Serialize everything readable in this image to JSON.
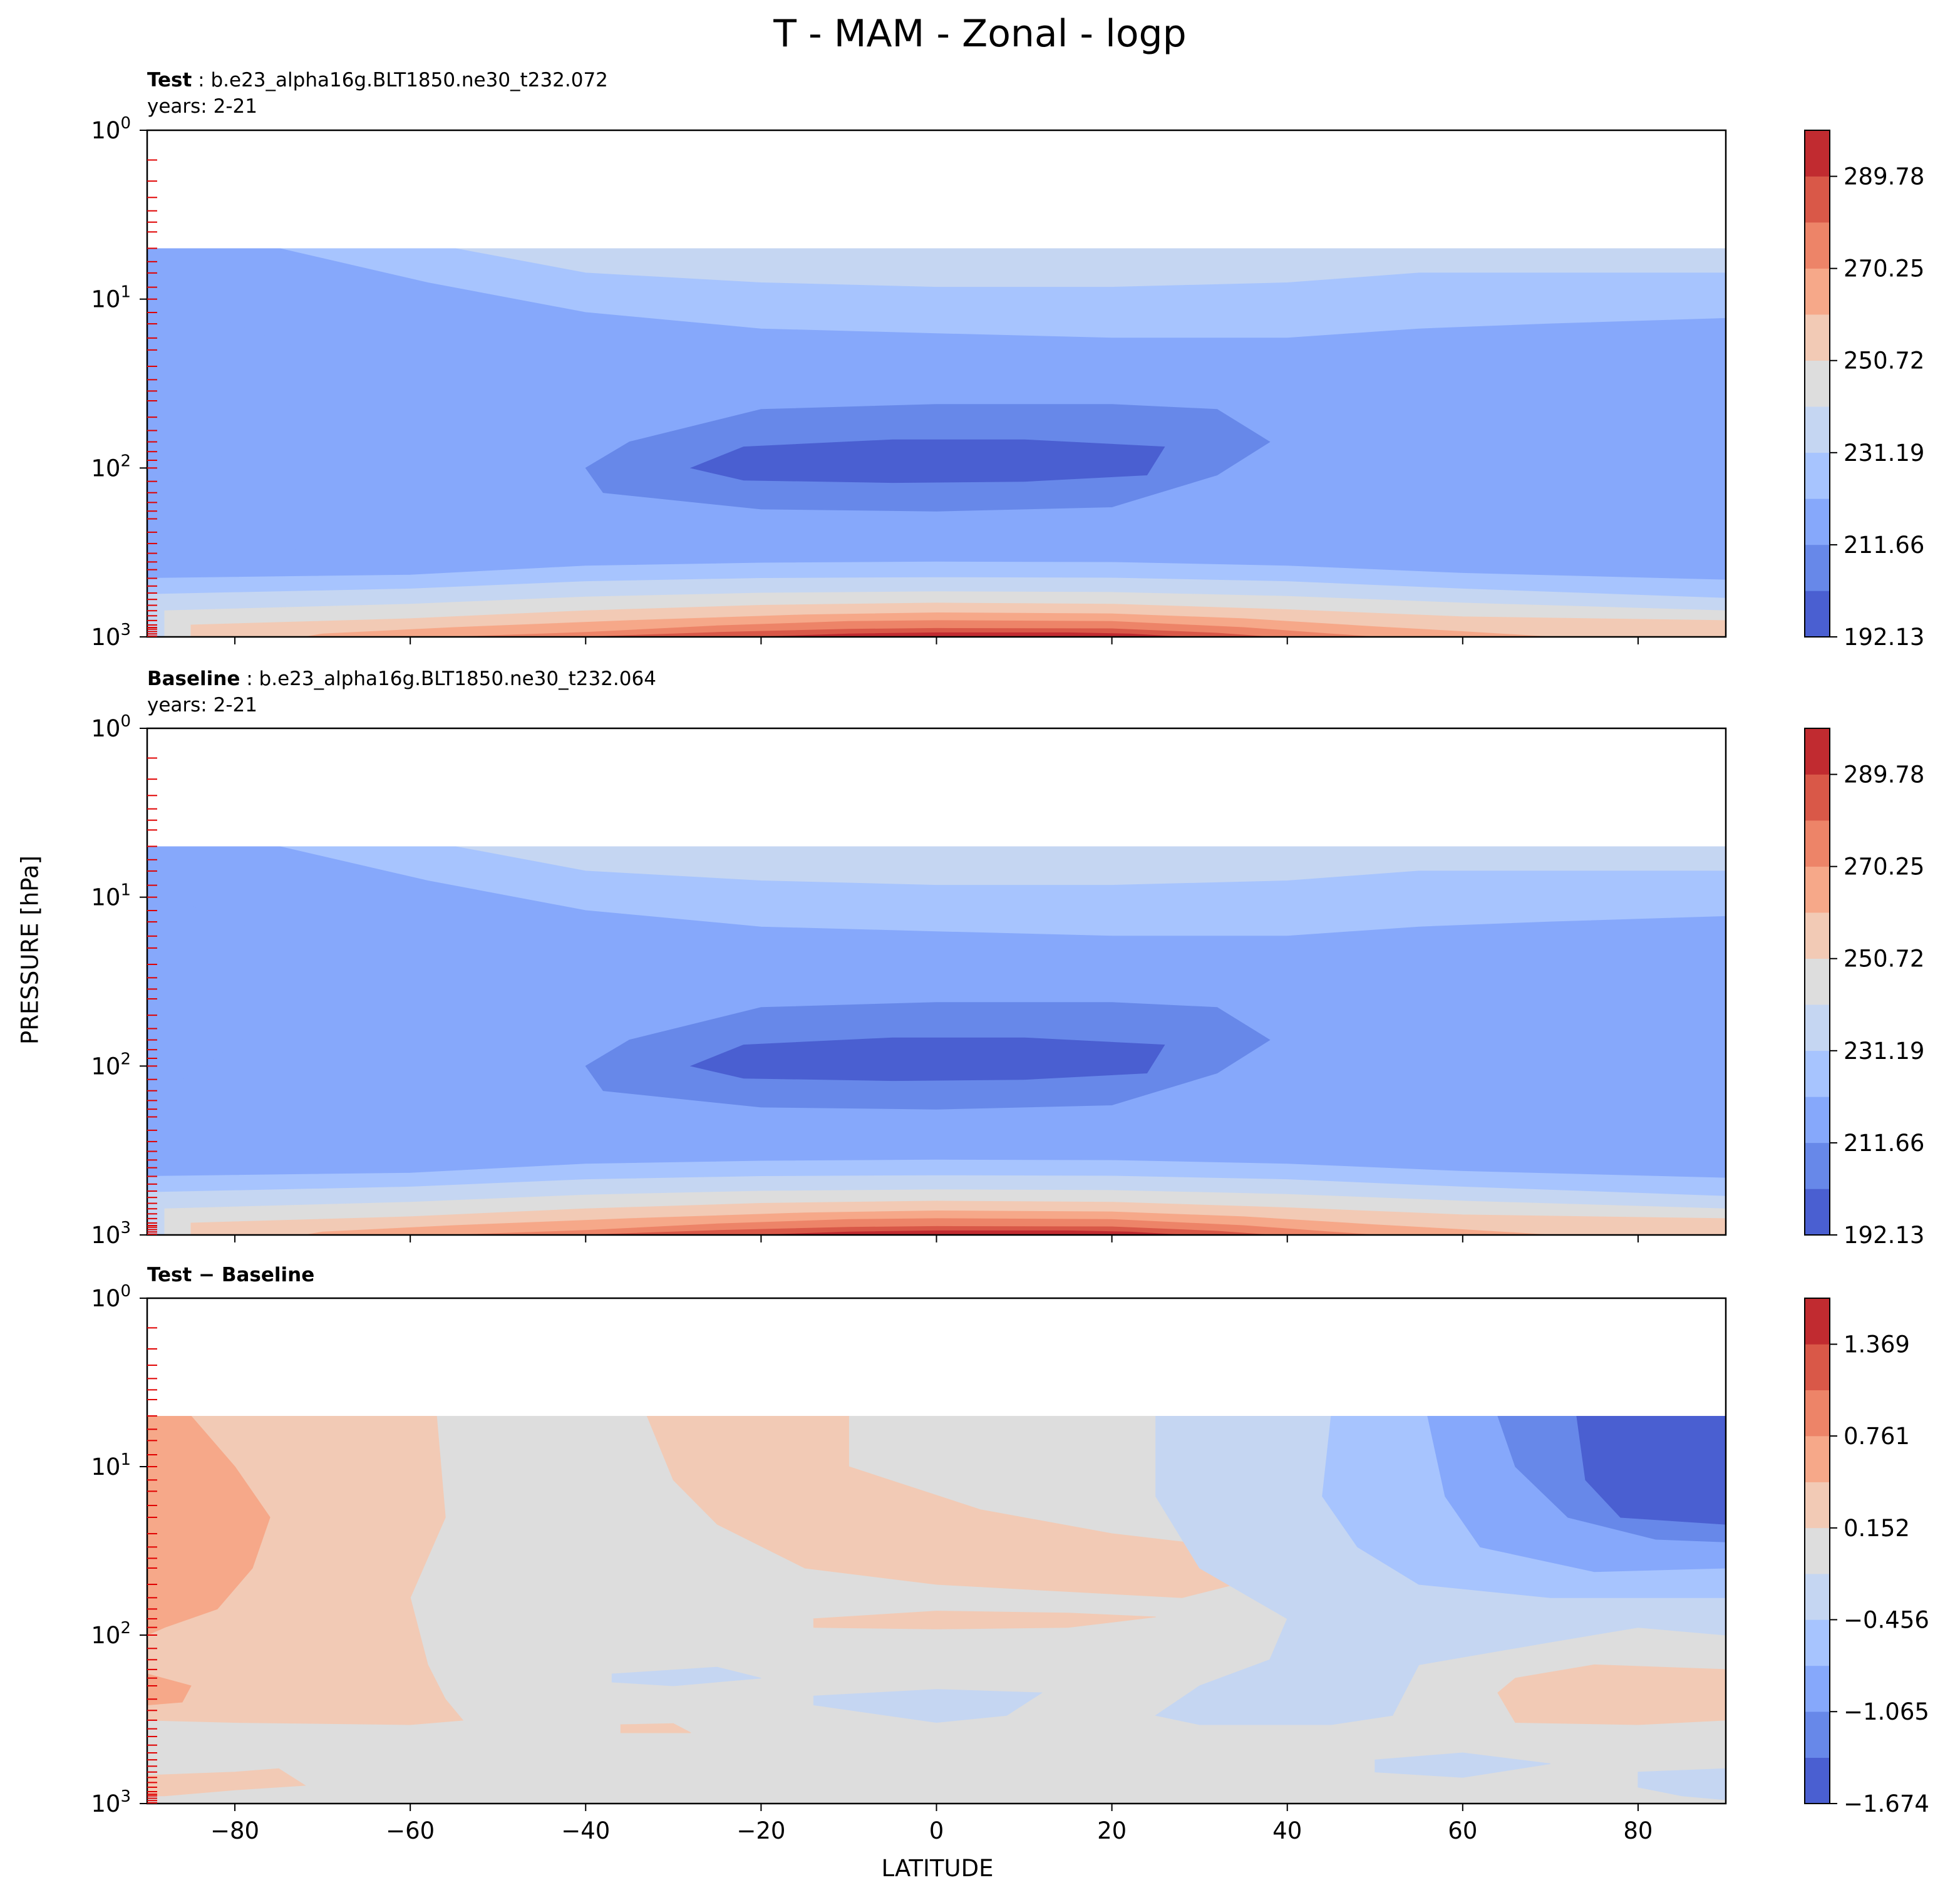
{
  "figure": {
    "suptitle": "T - MAM - Zonal - logp",
    "xlabel": "LATITUDE",
    "ylabel": "PRESSURE [hPa]"
  },
  "panels": [
    {
      "label": "Test",
      "case": "b.e23_alpha16g.BLT1850.ne30_t232.072",
      "years": "years: 2-21"
    },
    {
      "label": "Baseline",
      "case": "b.e23_alpha16g.BLT1850.ne30_t232.064",
      "years": "years: 2-21"
    },
    {
      "label": "Test − Baseline"
    }
  ],
  "chart_data": [
    {
      "type": "contourf",
      "panel": "Test",
      "x_ticks": [
        -80,
        -60,
        -40,
        -20,
        0,
        20,
        40,
        60,
        80
      ],
      "x_tick_labels": [
        "−80",
        "−60",
        "−40",
        "−20",
        "0",
        "20",
        "40",
        "60",
        "80"
      ],
      "xlim": [
        -90,
        90
      ],
      "ylim": [
        1000,
        1
      ],
      "yscale": "log",
      "y_tick_labels": [
        {
          "base": "10",
          "exp": "0"
        },
        {
          "base": "10",
          "exp": "1"
        },
        {
          "base": "10",
          "exp": "2"
        },
        {
          "base": "10",
          "exp": "3"
        }
      ],
      "model_top_hpa": 5,
      "colorbar": {
        "levels": [
          192.13,
          201.89,
          211.66,
          221.42,
          231.19,
          240.96,
          250.72,
          260.49,
          270.25,
          280.02,
          289.78,
          299.55
        ],
        "tick_labels": [
          "192.13",
          "211.66",
          "231.19",
          "250.72",
          "270.25",
          "289.78"
        ],
        "colors": [
          "#4a5fd1",
          "#6788e9",
          "#86a8fb",
          "#a7c4fe",
          "#c5d6f2",
          "#dddddd",
          "#f2cab5",
          "#f6a889",
          "#ed8468",
          "#d95848",
          "#c12b30"
        ]
      },
      "features": [
        "Tropical tropopause cold minimum (~192-202 K) near 100 hPa between 27S and 26N",
        "Surface maximum (~290-300 K) in the tropics near 1000 hPa",
        "Stratosphere 211-241 K, coldest over the southern polar region"
      ]
    },
    {
      "type": "contourf",
      "panel": "Baseline",
      "x_ticks": [
        -80,
        -60,
        -40,
        -20,
        0,
        20,
        40,
        60,
        80
      ],
      "xlim": [
        -90,
        90
      ],
      "ylim": [
        1000,
        1
      ],
      "yscale": "log",
      "model_top_hpa": 5,
      "colorbar": {
        "levels": [
          192.13,
          201.89,
          211.66,
          221.42,
          231.19,
          240.96,
          250.72,
          260.49,
          270.25,
          280.02,
          289.78,
          299.55
        ],
        "tick_labels": [
          "192.13",
          "211.66",
          "231.19",
          "250.72",
          "270.25",
          "289.78"
        ],
        "colors": [
          "#4a5fd1",
          "#6788e9",
          "#86a8fb",
          "#a7c4fe",
          "#c5d6f2",
          "#dddddd",
          "#f2cab5",
          "#f6a889",
          "#ed8468",
          "#d95848",
          "#c12b30"
        ]
      },
      "features": [
        "Nearly identical structure to the Test panel"
      ]
    },
    {
      "type": "contourf",
      "panel": "Test − Baseline",
      "x_ticks": [
        -80,
        -60,
        -40,
        -20,
        0,
        20,
        40,
        60,
        80
      ],
      "xlim": [
        -90,
        90
      ],
      "ylim": [
        1000,
        1
      ],
      "yscale": "log",
      "model_top_hpa": 5,
      "colorbar": {
        "levels": [
          -1.674,
          -1.37,
          -1.065,
          -0.761,
          -0.456,
          -0.152,
          0.152,
          0.456,
          0.761,
          1.065,
          1.369,
          1.674
        ],
        "tick_labels": [
          "−1.674",
          "−1.065",
          "−0.456",
          "0.152",
          "0.761",
          "1.369"
        ],
        "colors": [
          "#4a5fd1",
          "#6788e9",
          "#86a8fb",
          "#a7c4fe",
          "#c5d6f2",
          "#dddddd",
          "#f2cab5",
          "#f6a889",
          "#ed8468",
          "#d95848",
          "#c12b30"
        ]
      },
      "features": [
        "Cooling up to about -1.5 K over the northern high-latitude stratosphere (75N-90N, 10-25 hPa)",
        "Weak warming (0.15-0.76 K) over the southern high-latitude stratosphere",
        "Differences mostly within +/-0.15 K elsewhere"
      ]
    }
  ]
}
